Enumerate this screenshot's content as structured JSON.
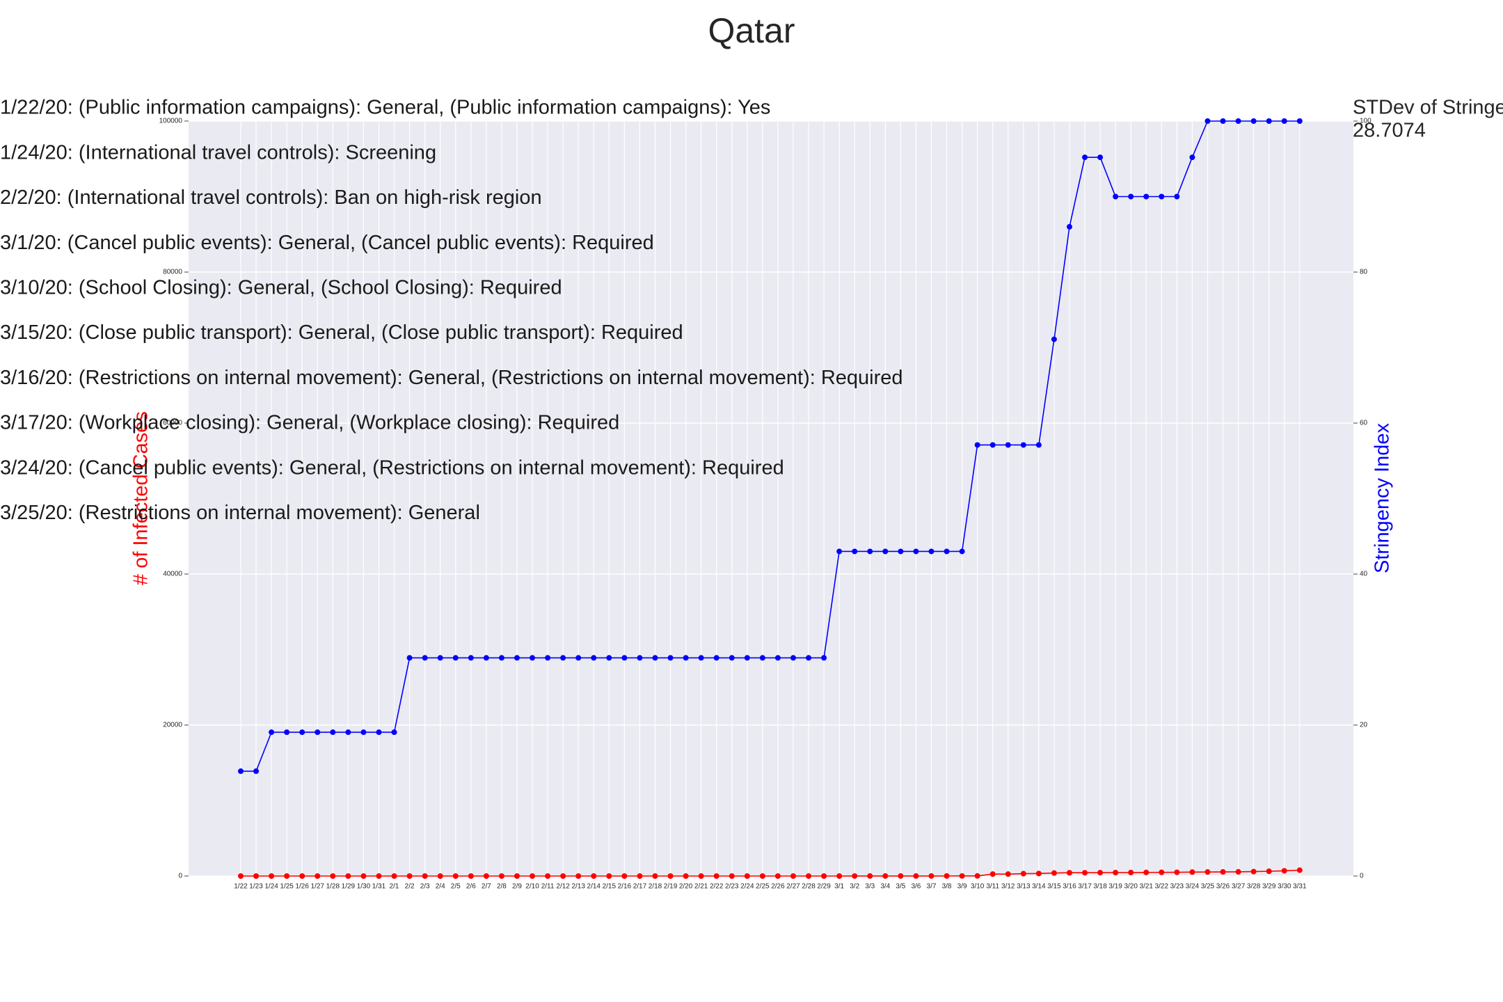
{
  "chart_data": {
    "type": "line",
    "title": "Qatar",
    "categories": [
      "1/22",
      "1/23",
      "1/24",
      "1/25",
      "1/26",
      "1/27",
      "1/28",
      "1/29",
      "1/30",
      "1/31",
      "2/1",
      "2/2",
      "2/3",
      "2/4",
      "2/5",
      "2/6",
      "2/7",
      "2/8",
      "2/9",
      "2/10",
      "2/11",
      "2/12",
      "2/13",
      "2/14",
      "2/15",
      "2/16",
      "2/17",
      "2/18",
      "2/19",
      "2/20",
      "2/21",
      "2/22",
      "2/23",
      "2/24",
      "2/25",
      "2/26",
      "2/27",
      "2/28",
      "2/29",
      "3/1",
      "3/2",
      "3/3",
      "3/4",
      "3/5",
      "3/6",
      "3/7",
      "3/8",
      "3/9",
      "3/10",
      "3/11",
      "3/12",
      "3/13",
      "3/14",
      "3/15",
      "3/16",
      "3/17",
      "3/18",
      "3/19",
      "3/20",
      "3/21",
      "3/22",
      "3/23",
      "3/24",
      "3/25",
      "3/26",
      "3/27",
      "3/28",
      "3/29",
      "3/30",
      "3/31"
    ],
    "series": [
      {
        "name": "# of Infected Cases",
        "color": "#ff0000",
        "values": [
          0,
          0,
          0,
          0,
          0,
          0,
          0,
          0,
          0,
          0,
          0,
          0,
          0,
          0,
          0,
          0,
          0,
          0,
          0,
          0,
          0,
          0,
          0,
          0,
          0,
          0,
          0,
          0,
          0,
          0,
          0,
          0,
          0,
          0,
          0,
          0,
          0,
          0,
          1,
          1,
          3,
          7,
          8,
          8,
          8,
          8,
          12,
          15,
          18,
          262,
          262,
          320,
          337,
          401,
          439,
          442,
          452,
          460,
          470,
          481,
          494,
          501,
          526,
          537,
          549,
          562,
          590,
          634,
          693,
          781
        ]
      },
      {
        "name": "Stringency Index",
        "color": "#0000ff",
        "axis": "y2",
        "values": [
          13.89,
          13.89,
          19.05,
          19.05,
          19.05,
          19.05,
          19.05,
          19.05,
          19.05,
          19.05,
          19.05,
          28.9,
          28.9,
          28.9,
          28.9,
          28.9,
          28.9,
          28.9,
          28.9,
          28.9,
          28.9,
          28.9,
          28.9,
          28.9,
          28.9,
          28.9,
          28.9,
          28.9,
          28.9,
          28.9,
          28.9,
          28.9,
          28.9,
          28.9,
          28.9,
          28.9,
          28.9,
          28.9,
          28.9,
          43,
          43,
          43,
          43,
          43,
          43,
          43,
          43,
          43,
          57.1,
          57.1,
          57.1,
          57.1,
          57.1,
          71.1,
          86,
          95.2,
          95.2,
          90,
          90,
          90,
          90,
          90,
          95.2,
          100,
          100,
          100,
          100,
          100,
          100,
          100
        ]
      }
    ],
    "ylim": [
      0,
      100000
    ],
    "yticks": [
      0,
      20000,
      40000,
      60000,
      80000,
      100000
    ],
    "y2lim": [
      0,
      100
    ],
    "y2ticks": [
      0,
      20,
      40,
      60,
      80,
      100
    ],
    "grid": true,
    "annotations": [
      "1/22/20: (Public information campaigns): General, (Public information campaigns): Yes",
      "1/24/20: (International travel controls): Screening",
      "2/2/20: (International travel controls): Ban on high-risk region",
      "3/1/20: (Cancel public events): General, (Cancel public events): Required",
      "3/10/20: (School Closing): General, (School Closing): Required",
      "3/15/20: (Close public transport): General, (Close public transport): Required",
      "3/16/20: (Restrictions on internal movement): General, (Restrictions on internal movement): Required",
      "3/17/20: (Workplace closing): General, (Workplace closing): Required",
      "3/24/20: (Cancel public events): General, (Restrictions on internal movement): Required",
      "3/25/20: (Restrictions on internal movement): General"
    ],
    "stdev_label": "STDev of Stringency",
    "stdev_value": "28.7074"
  }
}
